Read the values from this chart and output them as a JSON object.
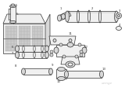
{
  "bg_color": "#ffffff",
  "lc": "#333333",
  "gray1": "#aaaaaa",
  "gray2": "#cccccc",
  "gray3": "#888888",
  "fill_light": "#f0f0f0",
  "fill_mid": "#d8d8d8",
  "fill_dark": "#888888",
  "watermark": "oemge"
}
